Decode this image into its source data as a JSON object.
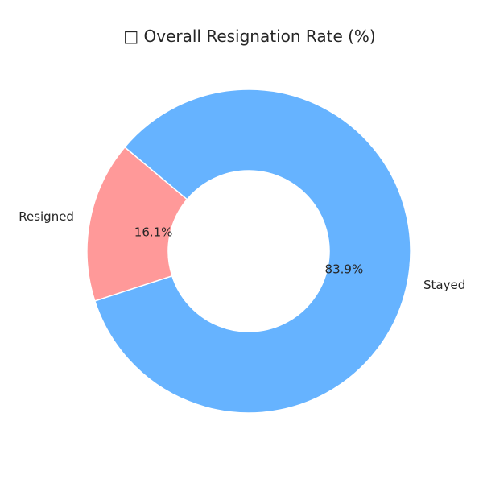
{
  "chart_data": {
    "type": "pie",
    "title": "□ Overall Resignation Rate (%)",
    "categories": [
      "Resigned",
      "Stayed"
    ],
    "values": [
      16.1,
      83.9
    ],
    "value_labels": [
      "16.1%",
      "83.9%"
    ],
    "colors": [
      "#ff9999",
      "#66b3ff"
    ],
    "donut": true,
    "legend": "none",
    "start_angle_deg": 140
  }
}
